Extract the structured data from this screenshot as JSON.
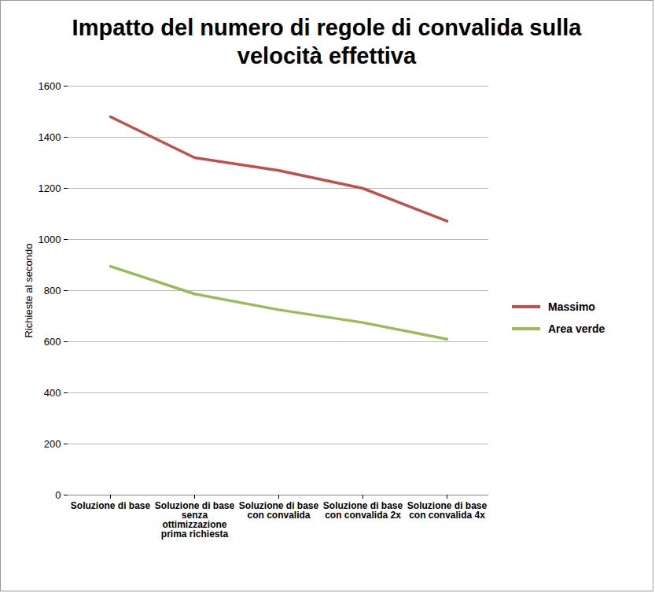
{
  "chart_data": {
    "type": "line",
    "title": "Impatto del numero di regole di convalida sulla velocità effettiva",
    "y_label": "Richieste al secondo",
    "categories": [
      "Soluzione di base",
      "Soluzione di base senza ottimizzazione prima richiesta",
      "Soluzione di base con convalida",
      "Soluzione di base con convalida 2x",
      "Soluzione di base con convalida 4x"
    ],
    "series": [
      {
        "name": "Massimo",
        "color": "#c0504d",
        "values": [
          1480,
          1320,
          1270,
          1200,
          1072
        ]
      },
      {
        "name": "Area verde",
        "color": "#9bbb59",
        "values": [
          895,
          787,
          725,
          675,
          610
        ]
      }
    ],
    "ylim": [
      0,
      1600
    ],
    "yticks": [
      0,
      200,
      400,
      600,
      800,
      1000,
      1200,
      1400,
      1600
    ],
    "grid": true,
    "legend": "right"
  }
}
